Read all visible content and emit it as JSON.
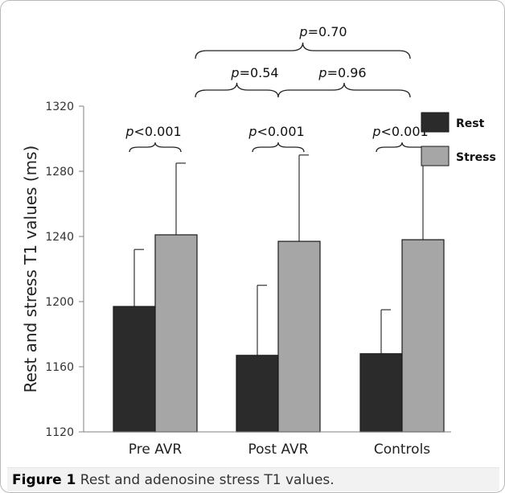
{
  "figure": {
    "label": "Figure 1",
    "caption": "Rest and adenosine stress T1 values."
  },
  "chart_data": {
    "type": "bar",
    "ylabel": "Rest and stress T1 values (ms)",
    "xlabel": "",
    "ylim": [
      1120,
      1320
    ],
    "yticks": [
      1120,
      1160,
      1200,
      1240,
      1280,
      1320
    ],
    "categories": [
      "Pre AVR",
      "Post AVR",
      "Controls"
    ],
    "series": [
      {
        "name": "Rest",
        "color": "#2b2b2b",
        "values": [
          1197,
          1167,
          1168
        ],
        "error": [
          35,
          43,
          27
        ]
      },
      {
        "name": "Stress",
        "color": "#a6a6a6",
        "values": [
          1241,
          1237,
          1238
        ],
        "error": [
          44,
          53,
          54
        ]
      }
    ],
    "legend_position": "right",
    "grid": false,
    "annotations": {
      "within_group": [
        {
          "category": "Pre AVR",
          "text": "<0.001"
        },
        {
          "category": "Post AVR",
          "text": "<0.001"
        },
        {
          "category": "Controls",
          "text": "<0.001"
        }
      ],
      "between_groups": [
        {
          "from": "Pre AVR",
          "to": "Post AVR",
          "text": "=0.54"
        },
        {
          "from": "Post AVR",
          "to": "Controls",
          "text": "=0.96"
        },
        {
          "from": "Pre AVR",
          "to": "Controls",
          "text": "=0.70"
        }
      ],
      "p_symbol": "p"
    }
  }
}
